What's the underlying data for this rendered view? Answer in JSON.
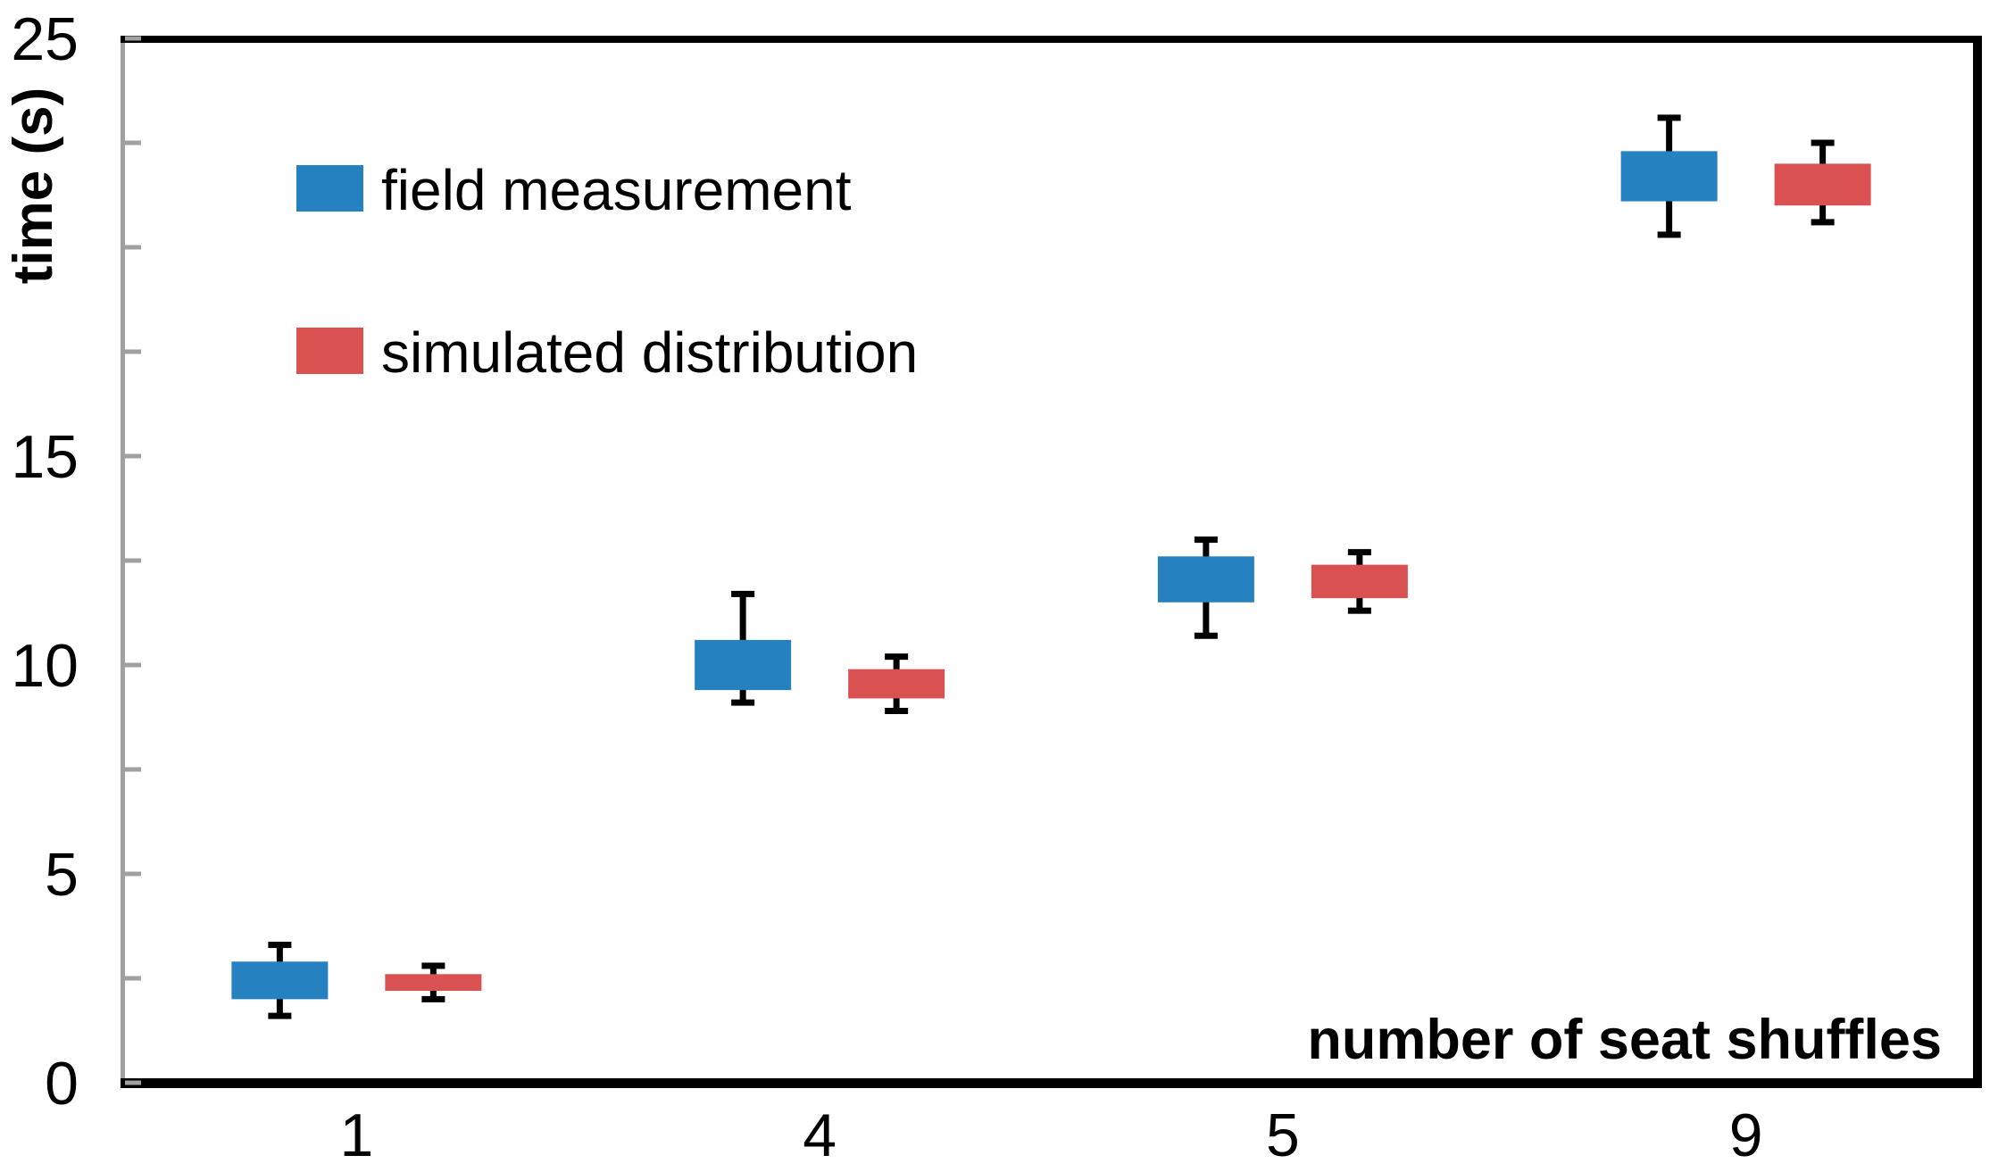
{
  "chart_data": {
    "type": "boxplot",
    "title": "",
    "xlabel": "number of seat shuffles",
    "ylabel": "time (s)",
    "categories": [
      "1",
      "4",
      "5",
      "9"
    ],
    "ylim": [
      0,
      25
    ],
    "y_ticks_labeled": [
      0,
      5,
      10,
      15,
      25
    ],
    "y_tick_label_20_hidden": true,
    "y_minor_tick_step": 2.5,
    "grid": false,
    "median_line": false,
    "legend_position": "upper-left-inside",
    "axis_style": {
      "y_axis_line_color": "#A0A0A0",
      "frame_color": "#000000",
      "whisker_color": "#000000",
      "tick_direction": "in"
    },
    "series": [
      {
        "name": "field measurement",
        "color": "#2681C0",
        "boxes": [
          {
            "category": "1",
            "whisker_low": 1.6,
            "box_low": 2.0,
            "box_high": 2.9,
            "whisker_high": 3.3
          },
          {
            "category": "4",
            "whisker_low": 9.1,
            "box_low": 9.4,
            "box_high": 10.6,
            "whisker_high": 11.7
          },
          {
            "category": "5",
            "whisker_low": 10.7,
            "box_low": 11.5,
            "box_high": 12.6,
            "whisker_high": 13.0
          },
          {
            "category": "9",
            "whisker_low": 20.3,
            "box_low": 21.1,
            "box_high": 22.3,
            "whisker_high": 23.1
          }
        ]
      },
      {
        "name": "simulated distribution",
        "color": "#D95151",
        "boxes": [
          {
            "category": "1",
            "whisker_low": 2.0,
            "box_low": 2.2,
            "box_high": 2.6,
            "whisker_high": 2.8
          },
          {
            "category": "4",
            "whisker_low": 8.9,
            "box_low": 9.2,
            "box_high": 9.9,
            "whisker_high": 10.2
          },
          {
            "category": "5",
            "whisker_low": 11.3,
            "box_low": 11.6,
            "box_high": 12.4,
            "whisker_high": 12.7
          },
          {
            "category": "9",
            "whisker_low": 20.6,
            "box_low": 21.0,
            "box_high": 22.0,
            "whisker_high": 22.5
          }
        ]
      }
    ]
  },
  "legend": {
    "items": [
      {
        "label": "field measurement"
      },
      {
        "label": "simulated distribution"
      }
    ]
  }
}
